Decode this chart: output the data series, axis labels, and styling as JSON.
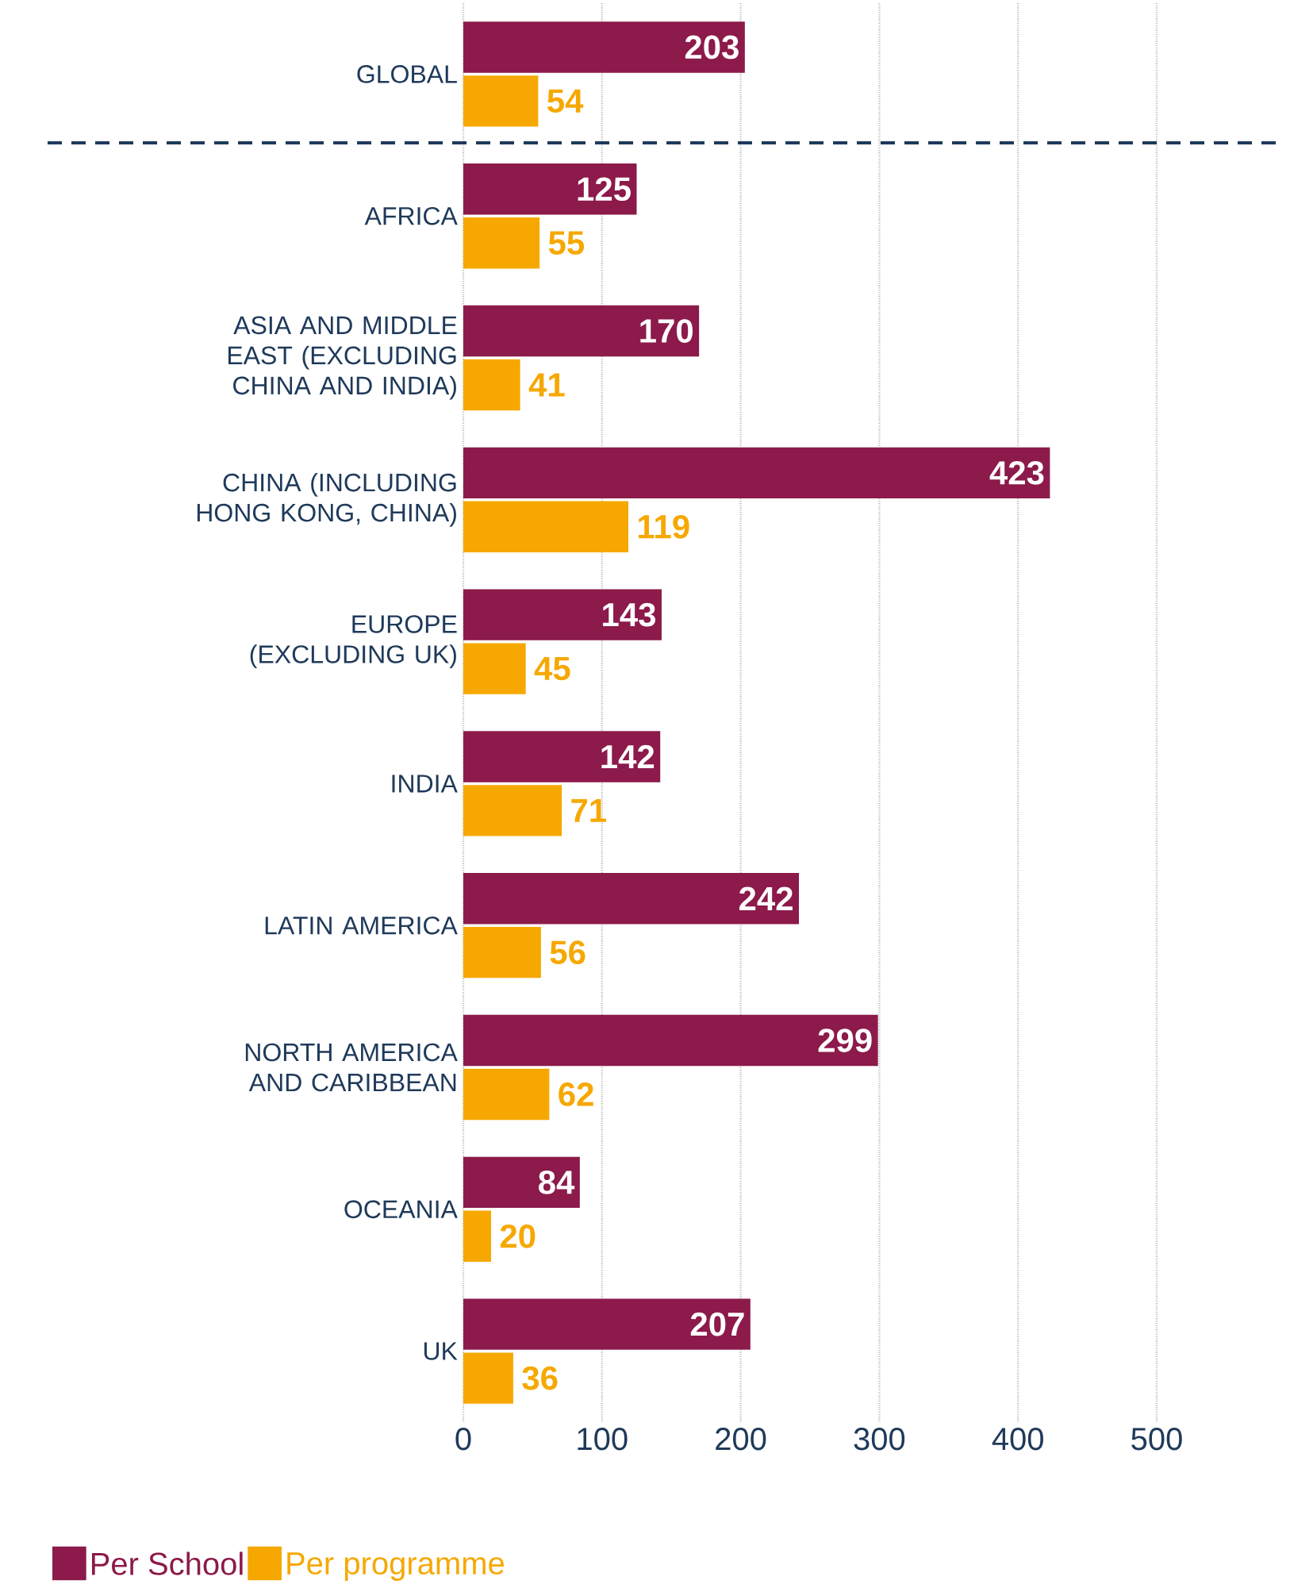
{
  "chart_data": {
    "type": "bar",
    "orientation": "horizontal",
    "categories": [
      "GLOBAL",
      "AFRICA",
      "ASIA AND MIDDLE EAST (EXCLUDING CHINA AND INDIA)",
      "CHINA (INCLUDING HONG KONG, CHINA)",
      "EUROPE (EXCLUDING UK)",
      "INDIA",
      "LATIN AMERICA",
      "NORTH AMERICA AND CARIBBEAN",
      "OCEANIA",
      "UK"
    ],
    "series": [
      {
        "name": "Per School",
        "color": "#8c1a4b",
        "values": [
          203,
          125,
          170,
          423,
          143,
          142,
          242,
          299,
          84,
          207
        ]
      },
      {
        "name": "Per programme",
        "color": "#f6a800",
        "values": [
          54,
          55,
          41,
          119,
          45,
          71,
          56,
          62,
          20,
          36
        ]
      }
    ],
    "xlim": [
      0,
      500
    ],
    "xticks": [
      0,
      100,
      200,
      300,
      400,
      500
    ],
    "grid": "x",
    "legend": "bottom left",
    "data_labels": true
  }
}
